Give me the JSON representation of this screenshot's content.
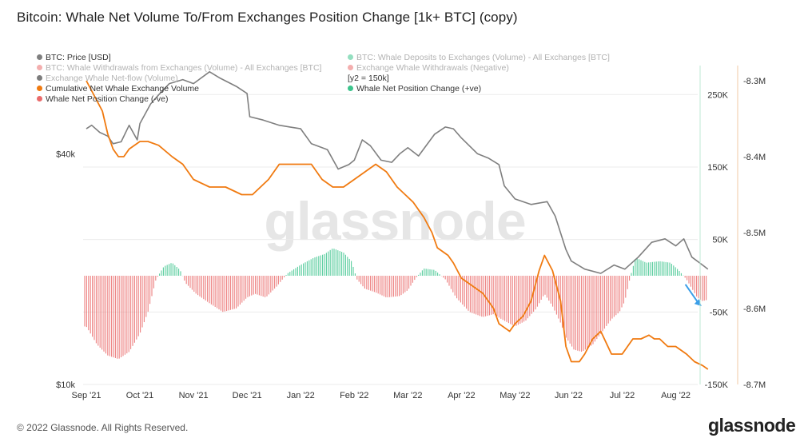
{
  "title": "Bitcoin: Whale Net Volume To/From Exchanges Position Change [1k+ BTC] (copy)",
  "footer": "© 2022 Glassnode. All Rights Reserved.",
  "brand": "glassnode",
  "watermark": "glassnode",
  "colors": {
    "price": "#7f7f7f",
    "cumulative": "#f07a10",
    "positive": "#3cc48c",
    "negative": "#ea6b6b",
    "arrow": "#3b9ee8",
    "grid": "#ebebeb"
  },
  "legend": [
    {
      "label": "BTC: Price [USD]",
      "color": "#7f7f7f",
      "enabled": true
    },
    {
      "label": "BTC: Whale Deposits to Exchanges (Volume) - All Exchanges [BTC]",
      "color": "#3cc48c",
      "enabled": false
    },
    {
      "label": "BTC: Whale Withdrawals from Exchanges (Volume) - All Exchanges [BTC]",
      "color": "#ea6b6b",
      "enabled": false
    },
    {
      "label": "Exchange Whale Withdrawals (Negative)",
      "color": "#ea6b6b",
      "enabled": false
    },
    {
      "label": "Exchange Whale Net-flow (Volume)",
      "color": "#111111",
      "enabled": false
    },
    {
      "label": "[y2 = 150k]",
      "color": "",
      "enabled": true
    },
    {
      "label": "Cumulative Net Whale Exchange Volume",
      "color": "#f07a10",
      "enabled": true
    },
    {
      "label": "Whale Net Position Change (+ve)",
      "color": "#3cc48c",
      "enabled": true
    },
    {
      "label": "Whale Net Position Change (-ve)",
      "color": "#ea6b6b",
      "enabled": true
    }
  ],
  "chart_data": {
    "type": "line",
    "x_labels": [
      "Sep '21",
      "Oct '21",
      "Nov '21",
      "Dec '21",
      "Jan '22",
      "Feb '22",
      "Mar '22",
      "Apr '22",
      "May '22",
      "Jun '22",
      "Jul '22",
      "Aug '22"
    ],
    "y_left": {
      "scale": "log",
      "range": [
        10000,
        68000
      ],
      "ticks": [
        "$10k",
        "$40k"
      ]
    },
    "y_mid": {
      "range": [
        -150000,
        290000
      ],
      "ticks": [
        "250K",
        "150K",
        "50K",
        "-50K",
        "-150K"
      ]
    },
    "y_right": {
      "range": [
        -8.7,
        -8.28
      ],
      "ticks": [
        "-8.3M",
        "-8.4M",
        "-8.5M",
        "-8.6M",
        "-8.7M"
      ]
    },
    "grid": true,
    "legend_position": "top-left",
    "series": [
      {
        "name": "BTC: Price [USD]",
        "axis": "left",
        "points": [
          [
            0,
            46500
          ],
          [
            0.1,
            47500
          ],
          [
            0.25,
            45500
          ],
          [
            0.4,
            44500
          ],
          [
            0.5,
            42500
          ],
          [
            0.65,
            43000
          ],
          [
            0.8,
            47500
          ],
          [
            0.95,
            43500
          ],
          [
            1.0,
            48000
          ],
          [
            1.2,
            54000
          ],
          [
            1.35,
            57000
          ],
          [
            1.55,
            61000
          ],
          [
            1.8,
            62500
          ],
          [
            2.0,
            61000
          ],
          [
            2.3,
            65500
          ],
          [
            2.5,
            63000
          ],
          [
            2.8,
            60000
          ],
          [
            3.0,
            57500
          ],
          [
            3.05,
            50000
          ],
          [
            3.3,
            49000
          ],
          [
            3.6,
            47500
          ],
          [
            3.8,
            47000
          ],
          [
            4.0,
            46500
          ],
          [
            4.2,
            42500
          ],
          [
            4.5,
            41000
          ],
          [
            4.7,
            36500
          ],
          [
            4.9,
            37500
          ],
          [
            5.0,
            38500
          ],
          [
            5.15,
            43500
          ],
          [
            5.3,
            42000
          ],
          [
            5.5,
            38500
          ],
          [
            5.7,
            38000
          ],
          [
            5.85,
            40000
          ],
          [
            6.0,
            41500
          ],
          [
            6.2,
            39500
          ],
          [
            6.5,
            45000
          ],
          [
            6.7,
            47000
          ],
          [
            6.85,
            46500
          ],
          [
            7.0,
            44000
          ],
          [
            7.3,
            40000
          ],
          [
            7.5,
            39000
          ],
          [
            7.7,
            37500
          ],
          [
            7.8,
            33000
          ],
          [
            8.0,
            30500
          ],
          [
            8.3,
            29500
          ],
          [
            8.6,
            30000
          ],
          [
            8.75,
            27500
          ],
          [
            8.95,
            22500
          ],
          [
            9.05,
            21000
          ],
          [
            9.3,
            20000
          ],
          [
            9.6,
            19500
          ],
          [
            9.85,
            20500
          ],
          [
            10.05,
            20000
          ],
          [
            10.3,
            21500
          ],
          [
            10.55,
            23500
          ],
          [
            10.8,
            24000
          ],
          [
            11.0,
            23000
          ],
          [
            11.15,
            24000
          ],
          [
            11.3,
            21500
          ],
          [
            11.5,
            20500
          ],
          [
            11.6,
            20000
          ]
        ]
      },
      {
        "name": "Cumulative Net Whale Exchange Volume",
        "axis": "right",
        "points": [
          [
            0,
            -8.3
          ],
          [
            0.15,
            -8.32
          ],
          [
            0.3,
            -8.34
          ],
          [
            0.4,
            -8.37
          ],
          [
            0.5,
            -8.39
          ],
          [
            0.6,
            -8.4
          ],
          [
            0.7,
            -8.4
          ],
          [
            0.8,
            -8.39
          ],
          [
            1.0,
            -8.38
          ],
          [
            1.15,
            -8.38
          ],
          [
            1.35,
            -8.385
          ],
          [
            1.6,
            -8.4
          ],
          [
            1.8,
            -8.41
          ],
          [
            2.0,
            -8.43
          ],
          [
            2.3,
            -8.44
          ],
          [
            2.6,
            -8.44
          ],
          [
            2.9,
            -8.45
          ],
          [
            3.1,
            -8.45
          ],
          [
            3.4,
            -8.43
          ],
          [
            3.6,
            -8.41
          ],
          [
            3.8,
            -8.41
          ],
          [
            4.0,
            -8.41
          ],
          [
            4.2,
            -8.41
          ],
          [
            4.4,
            -8.43
          ],
          [
            4.6,
            -8.44
          ],
          [
            4.8,
            -8.44
          ],
          [
            5.0,
            -8.43
          ],
          [
            5.2,
            -8.42
          ],
          [
            5.4,
            -8.41
          ],
          [
            5.6,
            -8.42
          ],
          [
            5.8,
            -8.44
          ],
          [
            6.1,
            -8.46
          ],
          [
            6.3,
            -8.48
          ],
          [
            6.45,
            -8.5
          ],
          [
            6.55,
            -8.52
          ],
          [
            6.75,
            -8.53
          ],
          [
            6.85,
            -8.54
          ],
          [
            7.0,
            -8.56
          ],
          [
            7.2,
            -8.57
          ],
          [
            7.4,
            -8.58
          ],
          [
            7.6,
            -8.6
          ],
          [
            7.7,
            -8.62
          ],
          [
            7.9,
            -8.63
          ],
          [
            8.0,
            -8.62
          ],
          [
            8.15,
            -8.61
          ],
          [
            8.3,
            -8.59
          ],
          [
            8.45,
            -8.55
          ],
          [
            8.55,
            -8.53
          ],
          [
            8.7,
            -8.55
          ],
          [
            8.85,
            -8.59
          ],
          [
            8.95,
            -8.65
          ],
          [
            9.05,
            -8.67
          ],
          [
            9.2,
            -8.67
          ],
          [
            9.3,
            -8.66
          ],
          [
            9.45,
            -8.64
          ],
          [
            9.6,
            -8.63
          ],
          [
            9.8,
            -8.66
          ],
          [
            10.0,
            -8.66
          ],
          [
            10.1,
            -8.65
          ],
          [
            10.2,
            -8.64
          ],
          [
            10.35,
            -8.64
          ],
          [
            10.5,
            -8.635
          ],
          [
            10.6,
            -8.64
          ],
          [
            10.7,
            -8.64
          ],
          [
            10.85,
            -8.65
          ],
          [
            11.0,
            -8.65
          ],
          [
            11.2,
            -8.66
          ],
          [
            11.35,
            -8.67
          ],
          [
            11.5,
            -8.675
          ],
          [
            11.6,
            -8.68
          ]
        ]
      },
      {
        "name": "Whale Net Position Change",
        "axis": "mid",
        "points": [
          [
            0,
            -70000
          ],
          [
            0.2,
            -95000
          ],
          [
            0.4,
            -110000
          ],
          [
            0.6,
            -115000
          ],
          [
            0.8,
            -105000
          ],
          [
            1.0,
            -80000
          ],
          [
            1.15,
            -50000
          ],
          [
            1.3,
            -5000
          ],
          [
            1.45,
            13000
          ],
          [
            1.6,
            18000
          ],
          [
            1.75,
            8000
          ],
          [
            1.85,
            -10000
          ],
          [
            2.05,
            -25000
          ],
          [
            2.3,
            -38000
          ],
          [
            2.55,
            -50000
          ],
          [
            2.8,
            -45000
          ],
          [
            3.0,
            -30000
          ],
          [
            3.15,
            -25000
          ],
          [
            3.35,
            -30000
          ],
          [
            3.55,
            -15000
          ],
          [
            3.75,
            3000
          ],
          [
            4.0,
            15000
          ],
          [
            4.25,
            25000
          ],
          [
            4.45,
            30000
          ],
          [
            4.6,
            38000
          ],
          [
            4.8,
            32000
          ],
          [
            4.95,
            20000
          ],
          [
            5.05,
            -5000
          ],
          [
            5.2,
            -18000
          ],
          [
            5.4,
            -23000
          ],
          [
            5.6,
            -30000
          ],
          [
            5.85,
            -28000
          ],
          [
            6.0,
            -20000
          ],
          [
            6.15,
            -3000
          ],
          [
            6.3,
            10000
          ],
          [
            6.5,
            8000
          ],
          [
            6.7,
            -5000
          ],
          [
            6.9,
            -30000
          ],
          [
            7.15,
            -50000
          ],
          [
            7.4,
            -57000
          ],
          [
            7.6,
            -53000
          ],
          [
            7.75,
            -60000
          ],
          [
            8.0,
            -70000
          ],
          [
            8.2,
            -62000
          ],
          [
            8.4,
            -45000
          ],
          [
            8.55,
            -25000
          ],
          [
            8.7,
            -42000
          ],
          [
            8.85,
            -65000
          ],
          [
            8.95,
            -85000
          ],
          [
            9.1,
            -102000
          ],
          [
            9.25,
            -105000
          ],
          [
            9.45,
            -95000
          ],
          [
            9.65,
            -75000
          ],
          [
            9.8,
            -60000
          ],
          [
            9.95,
            -50000
          ],
          [
            10.05,
            -35000
          ],
          [
            10.15,
            -2000
          ],
          [
            10.25,
            25000
          ],
          [
            10.45,
            18000
          ],
          [
            10.7,
            20000
          ],
          [
            10.9,
            18000
          ],
          [
            11.05,
            8000
          ],
          [
            11.2,
            -5000
          ],
          [
            11.4,
            -30000
          ],
          [
            11.5,
            -35000
          ],
          [
            11.6,
            -33000
          ]
        ]
      }
    ],
    "annotations": [
      {
        "type": "arrow",
        "color": "#3b9ee8",
        "direction": "down-right"
      }
    ]
  }
}
